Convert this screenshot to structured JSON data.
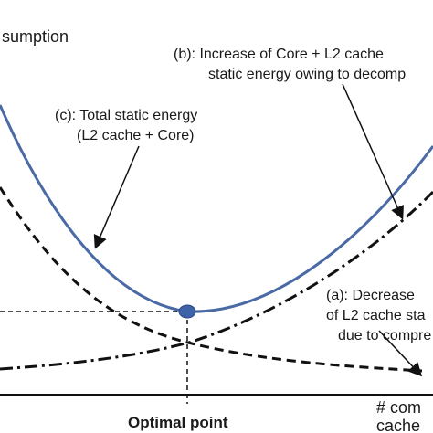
{
  "diagram": {
    "y_axis_label": "sumption",
    "x_axis_label": "Optimal point",
    "x_axis_note_line1": "# com",
    "x_axis_note_line2": "cache",
    "annotations": {
      "b_line1": "(b): Increase of Core + L2 cache",
      "b_line2": "static energy owing to decomp",
      "c_line1": "(c): Total static energy",
      "c_line2": "(L2 cache + Core)",
      "a_line1": "(a): Decrease",
      "a_line2": "of L2 cache sta",
      "a_line3": "due to compre"
    },
    "colors": {
      "total_curve": "#4a6aa5",
      "optimal_marker": "#3f63a8",
      "dashed_curves": "#111111"
    }
  }
}
